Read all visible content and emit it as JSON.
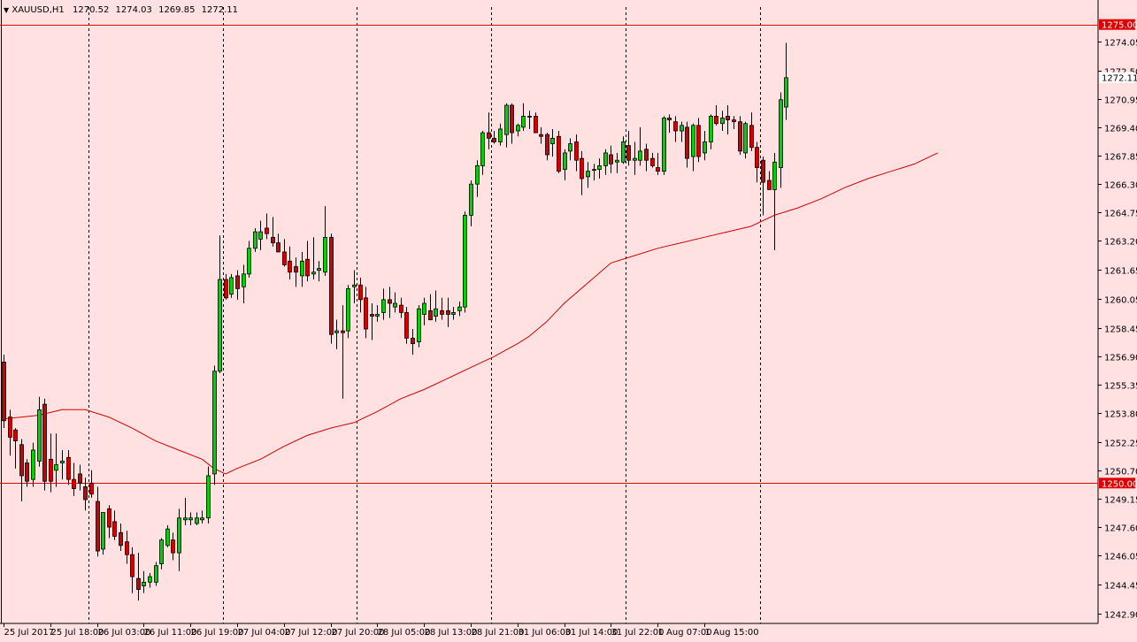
{
  "header": {
    "symbol": "XAUUSD,H1",
    "open": "1270.52",
    "high": "1274.03",
    "low": "1269.85",
    "close": "1272.11"
  },
  "chart_data": {
    "type": "candlestick",
    "ylim": [
      1242.35,
      1275.95
    ],
    "y_ticks": [
      "1274.05",
      "1272.50",
      "1270.95",
      "1269.40",
      "1267.85",
      "1266.30",
      "1264.75",
      "1263.20",
      "1261.65",
      "1260.05",
      "1258.45",
      "1256.90",
      "1255.35",
      "1253.80",
      "1252.25",
      "1250.70",
      "1249.15",
      "1247.60",
      "1246.05",
      "1244.45",
      "1242.90"
    ],
    "x_labels": [
      "25 Jul 2017",
      "25 Jul 18:00",
      "26 Jul 03:00",
      "26 Jul 11:00",
      "26 Jul 19:00",
      "27 Jul 04:00",
      "27 Jul 12:00",
      "27 Jul 20:00",
      "28 Jul 05:00",
      "28 Jul 13:00",
      "28 Jul 21:00",
      "31 Jul 06:00",
      "31 Jul 14:00",
      "31 Jul 22:00",
      "1 Aug 07:00",
      "1 Aug 15:00"
    ],
    "x_label_bar_index": [
      0,
      8,
      16,
      24,
      32,
      40,
      48,
      56,
      64,
      72,
      80,
      88,
      96,
      104,
      112,
      120
    ],
    "day_separator_bar_index": [
      14.5,
      37.5,
      60.5,
      83.5,
      106.5,
      129.5
    ],
    "horizontal_lines": [
      {
        "value": 1275.0,
        "label": "1275.00"
      },
      {
        "value": 1250.0,
        "label": "1250.00"
      }
    ],
    "current_price": {
      "value": 1272.11,
      "label": "1272.11"
    },
    "colors": {
      "bull": "#00d400",
      "bear": "#d40000",
      "wick": "#000000",
      "ma": "#d40000",
      "line": "#e00000",
      "background": "#ffe1e1"
    },
    "candles": [
      {
        "o": 1256.6,
        "h": 1257.0,
        "l": 1253.0,
        "c": 1253.4
      },
      {
        "o": 1253.6,
        "h": 1254.0,
        "l": 1251.5,
        "c": 1252.5
      },
      {
        "o": 1252.9,
        "h": 1253.0,
        "l": 1250.8,
        "c": 1252.3
      },
      {
        "o": 1252.1,
        "h": 1252.4,
        "l": 1249.0,
        "c": 1250.4
      },
      {
        "o": 1251.1,
        "h": 1251.3,
        "l": 1249.8,
        "c": 1250.1
      },
      {
        "o": 1250.2,
        "h": 1252.2,
        "l": 1249.8,
        "c": 1251.8
      },
      {
        "o": 1251.2,
        "h": 1254.7,
        "l": 1250.9,
        "c": 1254.0
      },
      {
        "o": 1254.3,
        "h": 1254.6,
        "l": 1249.6,
        "c": 1250.1
      },
      {
        "o": 1251.3,
        "h": 1252.7,
        "l": 1249.5,
        "c": 1250.1
      },
      {
        "o": 1250.7,
        "h": 1252.7,
        "l": 1249.8,
        "c": 1251.0
      },
      {
        "o": 1251.1,
        "h": 1251.8,
        "l": 1250.2,
        "c": 1251.2
      },
      {
        "o": 1251.4,
        "h": 1251.8,
        "l": 1249.9,
        "c": 1250.2
      },
      {
        "o": 1250.2,
        "h": 1251.1,
        "l": 1249.3,
        "c": 1249.7
      },
      {
        "o": 1250.5,
        "h": 1251.0,
        "l": 1249.6,
        "c": 1250.0
      },
      {
        "o": 1249.8,
        "h": 1250.3,
        "l": 1248.5,
        "c": 1249.1
      },
      {
        "o": 1250.0,
        "h": 1250.7,
        "l": 1249.2,
        "c": 1249.4
      },
      {
        "o": 1249.0,
        "h": 1249.8,
        "l": 1246.0,
        "c": 1246.3
      },
      {
        "o": 1246.4,
        "h": 1248.4,
        "l": 1246.1,
        "c": 1248.4
      },
      {
        "o": 1248.6,
        "h": 1248.8,
        "l": 1247.0,
        "c": 1247.6
      },
      {
        "o": 1247.9,
        "h": 1248.5,
        "l": 1246.9,
        "c": 1247.1
      },
      {
        "o": 1247.3,
        "h": 1247.8,
        "l": 1246.3,
        "c": 1246.6
      },
      {
        "o": 1246.8,
        "h": 1247.4,
        "l": 1245.6,
        "c": 1246.1
      },
      {
        "o": 1246.1,
        "h": 1246.5,
        "l": 1244.0,
        "c": 1244.9
      },
      {
        "o": 1244.8,
        "h": 1246.2,
        "l": 1243.6,
        "c": 1244.2
      },
      {
        "o": 1244.4,
        "h": 1245.2,
        "l": 1244.0,
        "c": 1244.6
      },
      {
        "o": 1244.6,
        "h": 1245.1,
        "l": 1244.3,
        "c": 1244.9
      },
      {
        "o": 1244.6,
        "h": 1245.7,
        "l": 1244.4,
        "c": 1245.5
      },
      {
        "o": 1245.6,
        "h": 1247.0,
        "l": 1245.3,
        "c": 1246.9
      },
      {
        "o": 1246.6,
        "h": 1247.7,
        "l": 1246.5,
        "c": 1247.5
      },
      {
        "o": 1246.9,
        "h": 1247.3,
        "l": 1245.8,
        "c": 1246.2
      },
      {
        "o": 1246.2,
        "h": 1248.6,
        "l": 1245.2,
        "c": 1248.1
      },
      {
        "o": 1248.0,
        "h": 1249.2,
        "l": 1247.7,
        "c": 1248.1
      },
      {
        "o": 1248.0,
        "h": 1248.4,
        "l": 1247.7,
        "c": 1248.1
      },
      {
        "o": 1247.8,
        "h": 1248.4,
        "l": 1247.7,
        "c": 1248.1
      },
      {
        "o": 1248.0,
        "h": 1248.5,
        "l": 1247.8,
        "c": 1248.1
      },
      {
        "o": 1248.1,
        "h": 1250.9,
        "l": 1247.8,
        "c": 1250.4
      },
      {
        "o": 1250.5,
        "h": 1256.4,
        "l": 1249.9,
        "c": 1256.1
      },
      {
        "o": 1256.1,
        "h": 1263.5,
        "l": 1256.0,
        "c": 1261.1
      },
      {
        "o": 1261.1,
        "h": 1261.4,
        "l": 1260.0,
        "c": 1260.1
      },
      {
        "o": 1260.3,
        "h": 1261.4,
        "l": 1260.1,
        "c": 1261.2
      },
      {
        "o": 1261.3,
        "h": 1261.6,
        "l": 1260.0,
        "c": 1260.6
      },
      {
        "o": 1260.7,
        "h": 1261.9,
        "l": 1259.8,
        "c": 1261.4
      },
      {
        "o": 1261.4,
        "h": 1263.2,
        "l": 1261.2,
        "c": 1262.8
      },
      {
        "o": 1262.8,
        "h": 1263.9,
        "l": 1262.6,
        "c": 1263.7
      },
      {
        "o": 1263.3,
        "h": 1264.3,
        "l": 1262.7,
        "c": 1263.7
      },
      {
        "o": 1263.9,
        "h": 1264.7,
        "l": 1263.3,
        "c": 1263.6
      },
      {
        "o": 1263.4,
        "h": 1264.5,
        "l": 1262.9,
        "c": 1263.1
      },
      {
        "o": 1263.1,
        "h": 1263.6,
        "l": 1262.6,
        "c": 1262.6
      },
      {
        "o": 1262.6,
        "h": 1263.3,
        "l": 1261.8,
        "c": 1261.9
      },
      {
        "o": 1262.1,
        "h": 1262.9,
        "l": 1261.1,
        "c": 1261.5
      },
      {
        "o": 1261.8,
        "h": 1262.3,
        "l": 1260.7,
        "c": 1261.5
      },
      {
        "o": 1261.3,
        "h": 1262.6,
        "l": 1260.7,
        "c": 1262.1
      },
      {
        "o": 1262.2,
        "h": 1263.2,
        "l": 1261.0,
        "c": 1261.3
      },
      {
        "o": 1261.4,
        "h": 1263.4,
        "l": 1261.1,
        "c": 1261.5
      },
      {
        "o": 1261.6,
        "h": 1262.1,
        "l": 1261.0,
        "c": 1261.7
      },
      {
        "o": 1261.5,
        "h": 1265.1,
        "l": 1261.3,
        "c": 1263.4
      },
      {
        "o": 1263.4,
        "h": 1263.6,
        "l": 1257.6,
        "c": 1258.1
      },
      {
        "o": 1258.2,
        "h": 1258.9,
        "l": 1257.3,
        "c": 1258.3
      },
      {
        "o": 1258.3,
        "h": 1259.7,
        "l": 1254.6,
        "c": 1258.2
      },
      {
        "o": 1258.3,
        "h": 1260.8,
        "l": 1257.9,
        "c": 1260.6
      },
      {
        "o": 1260.7,
        "h": 1261.6,
        "l": 1259.8,
        "c": 1260.8
      },
      {
        "o": 1260.8,
        "h": 1261.2,
        "l": 1259.3,
        "c": 1260.0
      },
      {
        "o": 1260.1,
        "h": 1260.7,
        "l": 1257.9,
        "c": 1258.4
      },
      {
        "o": 1259.2,
        "h": 1259.8,
        "l": 1257.8,
        "c": 1259.1
      },
      {
        "o": 1259.1,
        "h": 1259.7,
        "l": 1258.8,
        "c": 1259.2
      },
      {
        "o": 1259.3,
        "h": 1260.6,
        "l": 1258.9,
        "c": 1260.0
      },
      {
        "o": 1260.0,
        "h": 1260.7,
        "l": 1259.0,
        "c": 1259.8
      },
      {
        "o": 1259.6,
        "h": 1260.4,
        "l": 1259.3,
        "c": 1259.8
      },
      {
        "o": 1259.7,
        "h": 1260.1,
        "l": 1259.0,
        "c": 1259.3
      },
      {
        "o": 1259.3,
        "h": 1259.6,
        "l": 1257.6,
        "c": 1257.9
      },
      {
        "o": 1257.9,
        "h": 1258.4,
        "l": 1257.0,
        "c": 1257.6
      },
      {
        "o": 1257.7,
        "h": 1259.7,
        "l": 1257.4,
        "c": 1259.5
      },
      {
        "o": 1259.2,
        "h": 1260.1,
        "l": 1258.6,
        "c": 1259.8
      },
      {
        "o": 1259.4,
        "h": 1260.3,
        "l": 1259.0,
        "c": 1258.9
      },
      {
        "o": 1259.1,
        "h": 1260.5,
        "l": 1258.8,
        "c": 1259.5
      },
      {
        "o": 1259.4,
        "h": 1260.1,
        "l": 1258.9,
        "c": 1259.2
      },
      {
        "o": 1259.4,
        "h": 1260.1,
        "l": 1258.5,
        "c": 1259.2
      },
      {
        "o": 1259.2,
        "h": 1259.6,
        "l": 1258.9,
        "c": 1259.3
      },
      {
        "o": 1259.4,
        "h": 1259.9,
        "l": 1259.1,
        "c": 1259.6
      },
      {
        "o": 1259.6,
        "h": 1264.8,
        "l": 1259.3,
        "c": 1264.6
      },
      {
        "o": 1264.6,
        "h": 1266.5,
        "l": 1264.0,
        "c": 1266.3
      },
      {
        "o": 1266.3,
        "h": 1267.6,
        "l": 1265.6,
        "c": 1267.3
      },
      {
        "o": 1267.3,
        "h": 1269.2,
        "l": 1266.8,
        "c": 1269.1
      },
      {
        "o": 1269.1,
        "h": 1270.2,
        "l": 1268.2,
        "c": 1268.8
      },
      {
        "o": 1268.8,
        "h": 1269.2,
        "l": 1268.5,
        "c": 1268.6
      },
      {
        "o": 1268.6,
        "h": 1269.6,
        "l": 1268.4,
        "c": 1269.3
      },
      {
        "o": 1269.0,
        "h": 1270.7,
        "l": 1268.3,
        "c": 1270.6
      },
      {
        "o": 1270.6,
        "h": 1270.7,
        "l": 1268.5,
        "c": 1269.1
      },
      {
        "o": 1269.2,
        "h": 1269.6,
        "l": 1268.9,
        "c": 1269.5
      },
      {
        "o": 1269.4,
        "h": 1270.7,
        "l": 1269.2,
        "c": 1270.0
      },
      {
        "o": 1270.0,
        "h": 1270.3,
        "l": 1269.3,
        "c": 1270.0
      },
      {
        "o": 1270.0,
        "h": 1270.2,
        "l": 1269.1,
        "c": 1269.1
      },
      {
        "o": 1269.0,
        "h": 1269.4,
        "l": 1268.5,
        "c": 1268.9
      },
      {
        "o": 1269.0,
        "h": 1269.1,
        "l": 1267.6,
        "c": 1267.9
      },
      {
        "o": 1268.5,
        "h": 1269.3,
        "l": 1267.8,
        "c": 1268.8
      },
      {
        "o": 1268.9,
        "h": 1269.2,
        "l": 1266.9,
        "c": 1267.0
      },
      {
        "o": 1267.1,
        "h": 1268.2,
        "l": 1266.5,
        "c": 1268.0
      },
      {
        "o": 1268.1,
        "h": 1268.8,
        "l": 1267.6,
        "c": 1268.5
      },
      {
        "o": 1268.6,
        "h": 1269.0,
        "l": 1267.0,
        "c": 1267.6
      },
      {
        "o": 1267.7,
        "h": 1268.1,
        "l": 1265.7,
        "c": 1266.6
      },
      {
        "o": 1266.7,
        "h": 1267.5,
        "l": 1266.1,
        "c": 1267.0
      },
      {
        "o": 1267.1,
        "h": 1267.4,
        "l": 1266.5,
        "c": 1267.1
      },
      {
        "o": 1267.1,
        "h": 1267.7,
        "l": 1266.6,
        "c": 1267.3
      },
      {
        "o": 1267.3,
        "h": 1268.2,
        "l": 1266.8,
        "c": 1268.0
      },
      {
        "o": 1267.9,
        "h": 1268.4,
        "l": 1266.9,
        "c": 1267.4
      },
      {
        "o": 1267.5,
        "h": 1268.0,
        "l": 1266.9,
        "c": 1267.6
      },
      {
        "o": 1267.5,
        "h": 1268.9,
        "l": 1267.4,
        "c": 1268.6
      },
      {
        "o": 1268.4,
        "h": 1269.2,
        "l": 1267.3,
        "c": 1267.6
      },
      {
        "o": 1267.6,
        "h": 1268.6,
        "l": 1266.8,
        "c": 1267.7
      },
      {
        "o": 1267.6,
        "h": 1269.4,
        "l": 1267.3,
        "c": 1268.1
      },
      {
        "o": 1268.2,
        "h": 1268.5,
        "l": 1267.0,
        "c": 1267.6
      },
      {
        "o": 1267.7,
        "h": 1268.0,
        "l": 1267.2,
        "c": 1267.3
      },
      {
        "o": 1267.2,
        "h": 1268.0,
        "l": 1266.8,
        "c": 1267.0
      },
      {
        "o": 1267.0,
        "h": 1270.0,
        "l": 1266.8,
        "c": 1269.9
      },
      {
        "o": 1269.9,
        "h": 1270.1,
        "l": 1269.1,
        "c": 1269.8
      },
      {
        "o": 1269.7,
        "h": 1270.0,
        "l": 1268.6,
        "c": 1269.2
      },
      {
        "o": 1269.2,
        "h": 1269.7,
        "l": 1268.6,
        "c": 1269.5
      },
      {
        "o": 1269.4,
        "h": 1269.7,
        "l": 1267.2,
        "c": 1267.7
      },
      {
        "o": 1267.8,
        "h": 1269.6,
        "l": 1267.0,
        "c": 1269.5
      },
      {
        "o": 1269.5,
        "h": 1269.9,
        "l": 1267.5,
        "c": 1267.8
      },
      {
        "o": 1268.0,
        "h": 1269.2,
        "l": 1267.6,
        "c": 1268.6
      },
      {
        "o": 1268.6,
        "h": 1270.1,
        "l": 1268.2,
        "c": 1270.0
      },
      {
        "o": 1270.0,
        "h": 1270.6,
        "l": 1269.5,
        "c": 1269.6
      },
      {
        "o": 1269.6,
        "h": 1270.3,
        "l": 1269.2,
        "c": 1269.9
      },
      {
        "o": 1270.0,
        "h": 1270.6,
        "l": 1269.0,
        "c": 1269.8
      },
      {
        "o": 1269.8,
        "h": 1270.0,
        "l": 1269.3,
        "c": 1269.7
      },
      {
        "o": 1269.7,
        "h": 1270.0,
        "l": 1267.9,
        "c": 1268.1
      },
      {
        "o": 1268.0,
        "h": 1269.7,
        "l": 1267.7,
        "c": 1269.6
      },
      {
        "o": 1269.5,
        "h": 1270.2,
        "l": 1268.1,
        "c": 1268.3
      },
      {
        "o": 1268.3,
        "h": 1268.6,
        "l": 1266.4,
        "c": 1267.2
      },
      {
        "o": 1267.6,
        "h": 1267.8,
        "l": 1264.6,
        "c": 1266.4
      },
      {
        "o": 1266.5,
        "h": 1267.0,
        "l": 1266.0,
        "c": 1266.0
      },
      {
        "o": 1266.0,
        "h": 1268.0,
        "l": 1262.7,
        "c": 1267.5
      },
      {
        "o": 1267.2,
        "h": 1271.3,
        "l": 1266.1,
        "c": 1270.9
      },
      {
        "o": 1270.5,
        "h": 1274.0,
        "l": 1269.8,
        "c": 1272.1
      }
    ],
    "ma": [
      [
        0,
        1253.5
      ],
      [
        6,
        1253.7
      ],
      [
        10,
        1254.0
      ],
      [
        14,
        1254.0
      ],
      [
        18,
        1253.6
      ],
      [
        22,
        1253.0
      ],
      [
        26,
        1252.3
      ],
      [
        30,
        1251.8
      ],
      [
        34,
        1251.3
      ],
      [
        36,
        1250.8
      ],
      [
        38,
        1250.5
      ],
      [
        40,
        1250.8
      ],
      [
        44,
        1251.3
      ],
      [
        48,
        1252.0
      ],
      [
        52,
        1252.6
      ],
      [
        56,
        1253.0
      ],
      [
        60,
        1253.3
      ],
      [
        64,
        1253.9
      ],
      [
        68,
        1254.6
      ],
      [
        72,
        1255.1
      ],
      [
        76,
        1255.7
      ],
      [
        80,
        1256.3
      ],
      [
        84,
        1256.9
      ],
      [
        88,
        1257.6
      ],
      [
        90,
        1258.0
      ],
      [
        93,
        1258.8
      ],
      [
        96,
        1259.8
      ],
      [
        100,
        1260.9
      ],
      [
        104,
        1262.0
      ],
      [
        108,
        1262.4
      ],
      [
        112,
        1262.8
      ],
      [
        116,
        1263.1
      ],
      [
        120,
        1263.4
      ],
      [
        124,
        1263.7
      ],
      [
        128,
        1264.0
      ],
      [
        132,
        1264.6
      ],
      [
        136,
        1265.0
      ],
      [
        140,
        1265.5
      ],
      [
        144,
        1266.1
      ],
      [
        148,
        1266.6
      ],
      [
        152,
        1267.0
      ],
      [
        156,
        1267.4
      ],
      [
        158,
        1267.7
      ],
      [
        160,
        1268.0
      ]
    ]
  }
}
